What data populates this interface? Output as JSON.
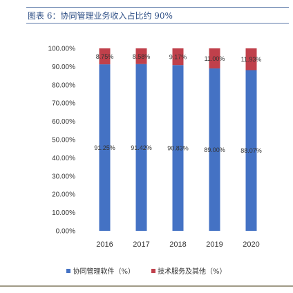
{
  "header": {
    "title": "图表 6：协同管理业务收入占比约 90%"
  },
  "colors": {
    "series_primary": "#4472c4",
    "series_secondary": "#c0404b",
    "title_text": "#2e4f86",
    "title_rule": "#5b78a8",
    "bottom_rule": "#a09a86"
  },
  "chart_data": {
    "type": "bar",
    "stacked": true,
    "categories": [
      "2016",
      "2017",
      "2018",
      "2019",
      "2020"
    ],
    "series": [
      {
        "name": "协同管理软件（%）",
        "values": [
          91.25,
          91.42,
          90.83,
          89.0,
          88.07
        ],
        "labels": [
          "91.25%",
          "91.42%",
          "90.83%",
          "89.00%",
          "88.07%"
        ]
      },
      {
        "name": "技术服务及其他（%）",
        "values": [
          8.75,
          8.58,
          9.17,
          11.0,
          11.93
        ],
        "labels": [
          "8.75%",
          "8.58%",
          "9.17%",
          "11.00%",
          "11.93%"
        ]
      }
    ],
    "ylim": [
      0,
      100
    ],
    "yticks": [
      "0.00%",
      "10.00%",
      "20.00%",
      "30.00%",
      "40.00%",
      "50.00%",
      "60.00%",
      "70.00%",
      "80.00%",
      "90.00%",
      "100.00%"
    ],
    "legend_position": "bottom",
    "grid": false
  }
}
